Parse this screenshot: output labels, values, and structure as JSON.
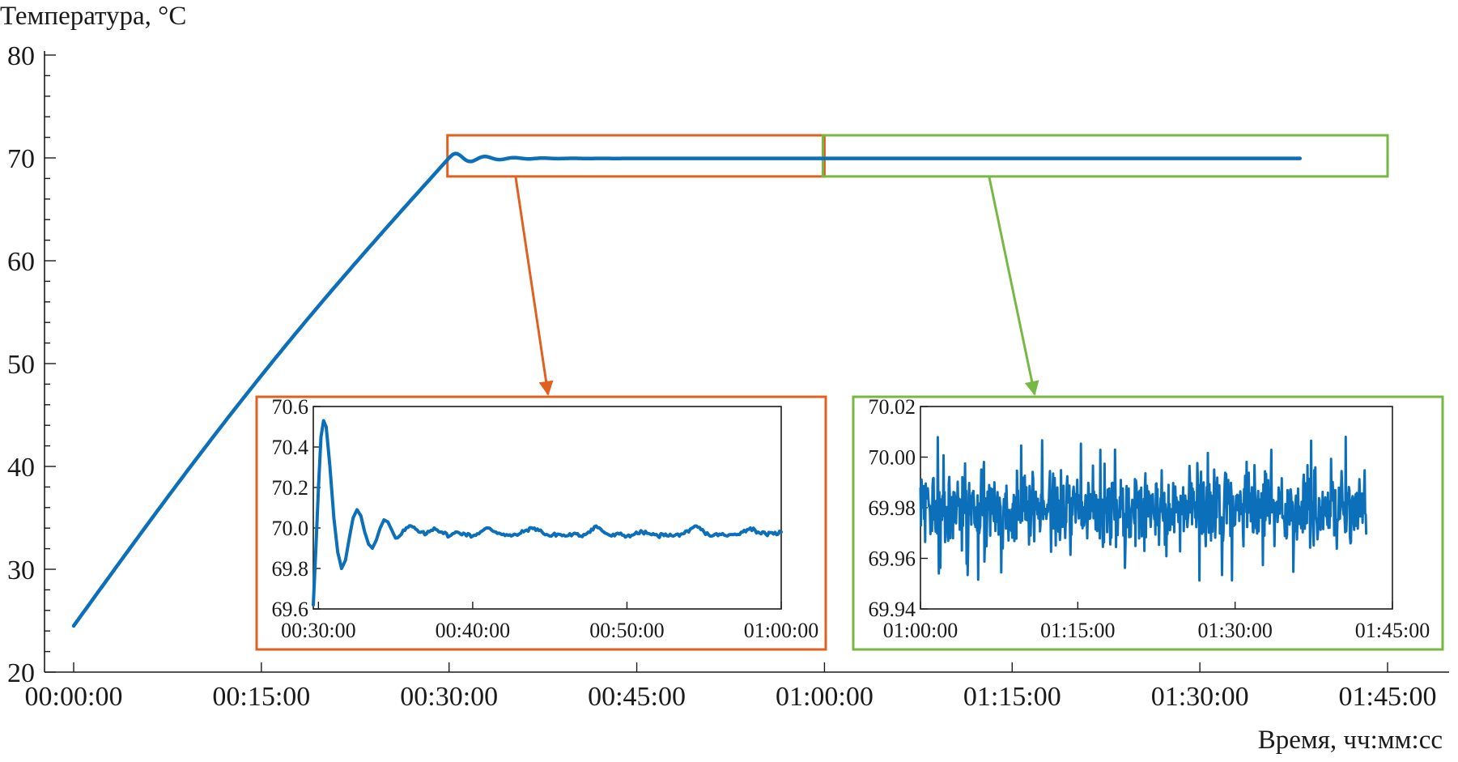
{
  "chart_data": [
    {
      "id": "main",
      "type": "line",
      "ylabel": "Температура, °C",
      "xlabel": "Время, чч:мм:сс",
      "xlim_s": [
        0,
        6300
      ],
      "ylim": [
        20,
        80
      ],
      "xticks": [
        {
          "v": 0,
          "label": "00:00:00"
        },
        {
          "v": 900,
          "label": "00:15:00"
        },
        {
          "v": 1800,
          "label": "00:30:00"
        },
        {
          "v": 2700,
          "label": "00:45:00"
        },
        {
          "v": 3600,
          "label": "01:00:00"
        },
        {
          "v": 4500,
          "label": "01:15:00"
        },
        {
          "v": 5400,
          "label": "01:30:00"
        },
        {
          "v": 6300,
          "label": "01:45:00"
        }
      ],
      "yticks": [
        {
          "v": 20,
          "label": "20"
        },
        {
          "v": 30,
          "label": "30"
        },
        {
          "v": 40,
          "label": "40"
        },
        {
          "v": 50,
          "label": "50"
        },
        {
          "v": 60,
          "label": "60"
        },
        {
          "v": 70,
          "label": "70"
        },
        {
          "v": 80,
          "label": "80"
        }
      ],
      "ramp": {
        "t_start": 0,
        "y_start": 24.5,
        "t_end": 1800,
        "y_end": 70.0
      },
      "settle": {
        "peak": 70.55,
        "final": 69.95,
        "t_end": 5880
      },
      "highlight_boxes": [
        {
          "color": "#e06020",
          "x_range": [
            1800,
            3600
          ],
          "y_range": [
            68.2,
            72.2
          ]
        },
        {
          "color": "#77b843",
          "x_range": [
            3600,
            6300
          ],
          "y_range": [
            68.2,
            72.2
          ]
        }
      ]
    },
    {
      "id": "inset1",
      "type": "line",
      "xlim_s": [
        1780,
        3600
      ],
      "ylim": [
        69.6,
        70.6
      ],
      "border_color": "#e06020",
      "xticks": [
        {
          "v": 1800,
          "label": "00:30:00"
        },
        {
          "v": 2400,
          "label": "00:40:00"
        },
        {
          "v": 3000,
          "label": "00:50:00"
        },
        {
          "v": 3600,
          "label": "01:00:00"
        }
      ],
      "yticks": [
        {
          "v": 69.6,
          "label": "69.6"
        },
        {
          "v": 69.8,
          "label": "69.8"
        },
        {
          "v": 70.0,
          "label": "70.0"
        },
        {
          "v": 70.2,
          "label": "70.2"
        },
        {
          "v": 70.4,
          "label": "70.4"
        },
        {
          "v": 70.6,
          "label": "70.6"
        }
      ],
      "points": [
        [
          1780,
          69.62
        ],
        [
          1790,
          69.9
        ],
        [
          1800,
          70.2
        ],
        [
          1810,
          70.45
        ],
        [
          1820,
          70.53
        ],
        [
          1830,
          70.5
        ],
        [
          1845,
          70.3
        ],
        [
          1860,
          70.05
        ],
        [
          1875,
          69.88
        ],
        [
          1890,
          69.8
        ],
        [
          1905,
          69.84
        ],
        [
          1920,
          69.95
        ],
        [
          1935,
          70.05
        ],
        [
          1950,
          70.09
        ],
        [
          1965,
          70.06
        ],
        [
          1980,
          69.98
        ],
        [
          1995,
          69.92
        ],
        [
          2010,
          69.9
        ],
        [
          2025,
          69.94
        ],
        [
          2040,
          70.0
        ],
        [
          2055,
          70.04
        ],
        [
          2070,
          70.03
        ],
        [
          2085,
          69.99
        ],
        [
          2100,
          69.95
        ],
        [
          2115,
          69.96
        ],
        [
          2130,
          69.99
        ],
        [
          2160,
          70.01
        ],
        [
          2190,
          69.98
        ],
        [
          2220,
          69.97
        ],
        [
          2250,
          70.0
        ],
        [
          2280,
          69.98
        ],
        [
          2310,
          69.96
        ],
        [
          2340,
          69.98
        ],
        [
          2370,
          69.97
        ],
        [
          2400,
          69.96
        ],
        [
          2430,
          69.98
        ],
        [
          2460,
          70.0
        ],
        [
          2490,
          69.98
        ],
        [
          2520,
          69.97
        ],
        [
          2550,
          69.96
        ],
        [
          2580,
          69.97
        ],
        [
          2610,
          69.99
        ],
        [
          2640,
          70.0
        ],
        [
          2670,
          69.98
        ],
        [
          2700,
          69.96
        ],
        [
          2730,
          69.97
        ],
        [
          2760,
          69.96
        ],
        [
          2790,
          69.97
        ],
        [
          2820,
          69.96
        ],
        [
          2850,
          69.98
        ],
        [
          2880,
          70.01
        ],
        [
          2910,
          69.98
        ],
        [
          2940,
          69.96
        ],
        [
          2970,
          69.97
        ],
        [
          3000,
          69.96
        ],
        [
          3030,
          69.97
        ],
        [
          3060,
          69.98
        ],
        [
          3090,
          69.97
        ],
        [
          3120,
          69.96
        ],
        [
          3150,
          69.97
        ],
        [
          3180,
          69.96
        ],
        [
          3210,
          69.97
        ],
        [
          3240,
          69.98
        ],
        [
          3270,
          70.01
        ],
        [
          3300,
          69.98
        ],
        [
          3330,
          69.96
        ],
        [
          3360,
          69.97
        ],
        [
          3390,
          69.96
        ],
        [
          3420,
          69.97
        ],
        [
          3450,
          69.98
        ],
        [
          3480,
          70.0
        ],
        [
          3510,
          69.98
        ],
        [
          3540,
          69.97
        ],
        [
          3570,
          69.97
        ],
        [
          3600,
          69.98
        ]
      ]
    },
    {
      "id": "inset2",
      "type": "line",
      "xlim_s": [
        3600,
        6300
      ],
      "ylim": [
        69.94,
        70.02
      ],
      "border_color": "#77b843",
      "xticks": [
        {
          "v": 3600,
          "label": "01:00:00"
        },
        {
          "v": 4500,
          "label": "01:15:00"
        },
        {
          "v": 5400,
          "label": "01:30:00"
        },
        {
          "v": 6300,
          "label": "01:45:00"
        }
      ],
      "yticks": [
        {
          "v": 69.94,
          "label": "69.94"
        },
        {
          "v": 69.96,
          "label": "69.96"
        },
        {
          "v": 69.98,
          "label": "69.98"
        },
        {
          "v": 70.0,
          "label": "70.00"
        },
        {
          "v": 70.02,
          "label": "70.02"
        }
      ],
      "noise": {
        "t_start": 3600,
        "t_end": 6150,
        "mean": 69.98,
        "min": 69.949,
        "max": 70.008
      }
    }
  ]
}
